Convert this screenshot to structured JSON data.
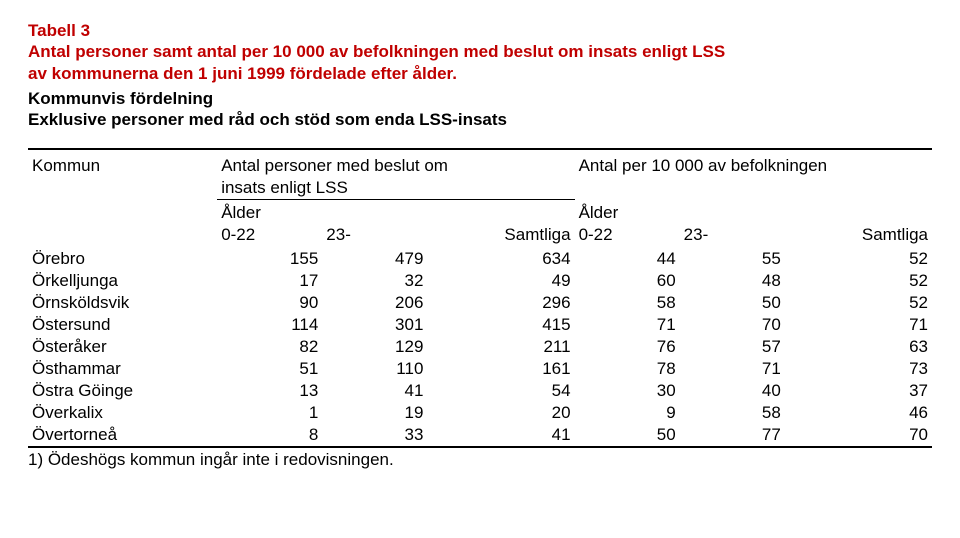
{
  "title": {
    "line1": "Tabell 3",
    "line2": "Antal personer samt antal per 10 000 av befolkningen med beslut om insats enligt LSS",
    "line3": "av kommunerna den 1 juni 1999 fördelade efter ålder."
  },
  "subtitle": {
    "line1": "Kommunvis fördelning",
    "line2": "Exklusive personer med råd och stöd som enda LSS-insats"
  },
  "headers": {
    "kommun": "Kommun",
    "group1_line1": "Antal personer med beslut om",
    "group1_line2": "insats enligt LSS",
    "group2_line1": "Antal per 10 000 av befolkningen",
    "alder": "Ålder",
    "c0_22": "0-22",
    "c23": "23-",
    "samtliga": "Samtliga"
  },
  "rows": [
    {
      "name": "Örebro",
      "a": 155,
      "b": 479,
      "c": 634,
      "d": 44,
      "e": 55,
      "f": 52
    },
    {
      "name": "Örkelljunga",
      "a": 17,
      "b": 32,
      "c": 49,
      "d": 60,
      "e": 48,
      "f": 52
    },
    {
      "name": "Örnsköldsvik",
      "a": 90,
      "b": 206,
      "c": 296,
      "d": 58,
      "e": 50,
      "f": 52
    },
    {
      "name": "Östersund",
      "a": 114,
      "b": 301,
      "c": 415,
      "d": 71,
      "e": 70,
      "f": 71
    },
    {
      "name": "Österåker",
      "a": 82,
      "b": 129,
      "c": 211,
      "d": 76,
      "e": 57,
      "f": 63
    },
    {
      "name": "Östhammar",
      "a": 51,
      "b": 110,
      "c": 161,
      "d": 78,
      "e": 71,
      "f": 73
    },
    {
      "name": "Östra Göinge",
      "a": 13,
      "b": 41,
      "c": 54,
      "d": 30,
      "e": 40,
      "f": 37
    },
    {
      "name": "Överkalix",
      "a": 1,
      "b": 19,
      "c": 20,
      "d": 9,
      "e": 58,
      "f": 46
    },
    {
      "name": "Övertorneå",
      "a": 8,
      "b": 33,
      "c": 41,
      "d": 50,
      "e": 77,
      "f": 70
    }
  ],
  "footnote": "1) Ödeshögs kommun ingår inte i redovisningen.",
  "style": {
    "title_color": "#c00000",
    "text_color": "#000000",
    "background": "#ffffff",
    "font_size_pt": 13
  }
}
